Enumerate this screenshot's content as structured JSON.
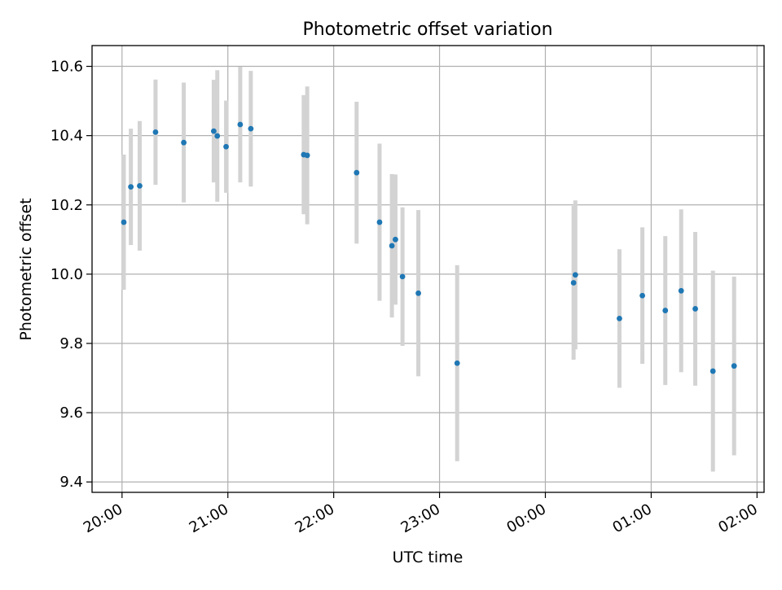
{
  "chart_data": {
    "type": "scatter",
    "title": "Photometric offset variation",
    "xlabel": "UTC time",
    "ylabel": "Photometric offset",
    "x_is_time": true,
    "x_ticks": [
      "20:00",
      "21:00",
      "22:00",
      "23:00",
      "00:00",
      "01:00",
      "02:00"
    ],
    "y_ticks": [
      "9.4",
      "9.6",
      "9.8",
      "10.0",
      "10.2",
      "10.4",
      "10.6"
    ],
    "ylim": [
      9.37,
      10.66
    ],
    "xlim": [
      "19:43",
      "02:04"
    ],
    "grid": true,
    "colors": {
      "point": "#1f77b4",
      "errorbar": "#d3d3d3",
      "grid": "#b0b0b0"
    },
    "points": [
      {
        "x": "20:01",
        "y": 10.15,
        "err": 0.195
      },
      {
        "x": "20:05",
        "y": 10.252,
        "err": 0.168
      },
      {
        "x": "20:10",
        "y": 10.255,
        "err": 0.187
      },
      {
        "x": "20:19",
        "y": 10.41,
        "err": 0.152
      },
      {
        "x": "20:35",
        "y": 10.38,
        "err": 0.173
      },
      {
        "x": "20:52",
        "y": 10.413,
        "err": 0.148
      },
      {
        "x": "20:54",
        "y": 10.399,
        "err": 0.19
      },
      {
        "x": "20:59",
        "y": 10.368,
        "err": 0.133
      },
      {
        "x": "21:07",
        "y": 10.432,
        "err": 0.167
      },
      {
        "x": "21:13",
        "y": 10.42,
        "err": 0.167
      },
      {
        "x": "21:43",
        "y": 10.345,
        "err": 0.172
      },
      {
        "x": "21:45",
        "y": 10.343,
        "err": 0.199
      },
      {
        "x": "22:13",
        "y": 10.293,
        "err": 0.205
      },
      {
        "x": "22:26",
        "y": 10.15,
        "err": 0.227
      },
      {
        "x": "22:33",
        "y": 10.082,
        "err": 0.207
      },
      {
        "x": "22:35",
        "y": 10.1,
        "err": 0.188
      },
      {
        "x": "22:39",
        "y": 9.993,
        "err": 0.2
      },
      {
        "x": "22:48",
        "y": 9.945,
        "err": 0.24
      },
      {
        "x": "23:10",
        "y": 9.743,
        "err": 0.283
      },
      {
        "x": "00:16",
        "y": 9.975,
        "err": 0.222
      },
      {
        "x": "00:17",
        "y": 9.998,
        "err": 0.215
      },
      {
        "x": "00:42",
        "y": 9.872,
        "err": 0.2
      },
      {
        "x": "00:55",
        "y": 9.938,
        "err": 0.197
      },
      {
        "x": "01:08",
        "y": 9.895,
        "err": 0.215
      },
      {
        "x": "01:17",
        "y": 9.952,
        "err": 0.235
      },
      {
        "x": "01:25",
        "y": 9.9,
        "err": 0.222
      },
      {
        "x": "01:35",
        "y": 9.72,
        "err": 0.29
      },
      {
        "x": "01:47",
        "y": 9.735,
        "err": 0.258
      }
    ]
  }
}
